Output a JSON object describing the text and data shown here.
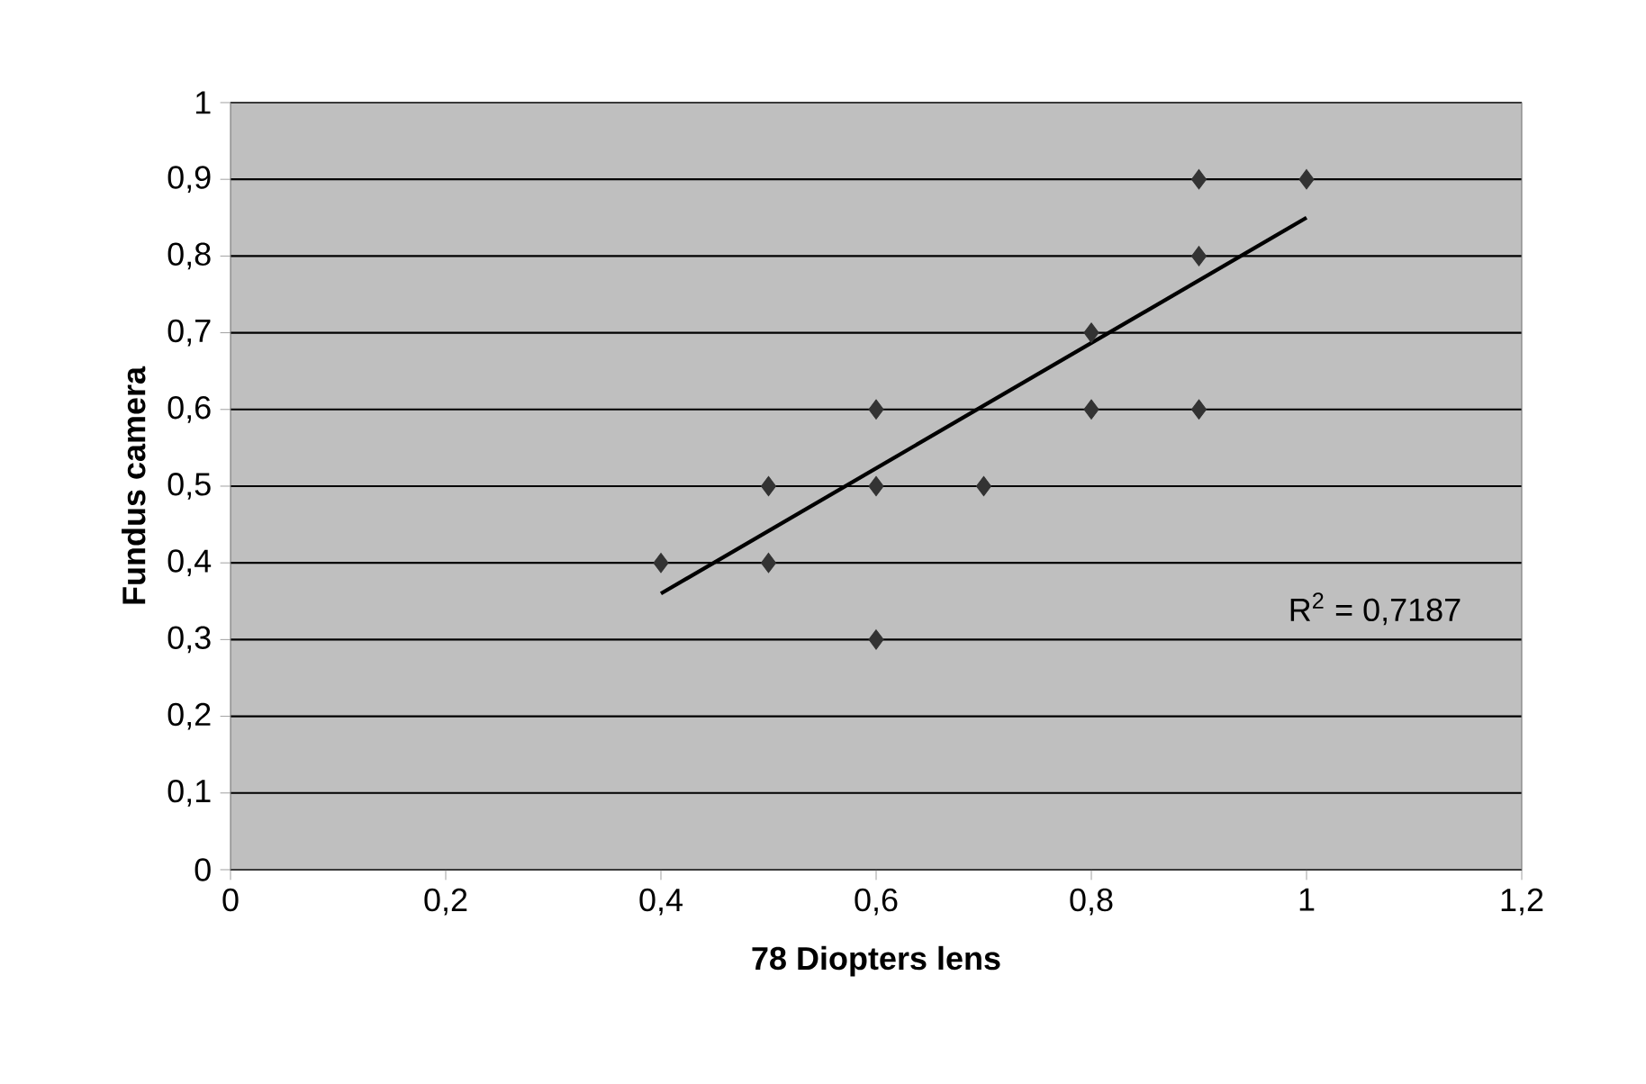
{
  "chart_data": {
    "type": "scatter",
    "xlabel": "78 Diopters lens",
    "ylabel": "Fundus camera",
    "grid": "y",
    "annotations": [
      "R$^{2}$ = 0,7187"
    ],
    "series": [
      {
        "marker": "diamond",
        "color": "#333333",
        "x": [
          0.4,
          0.5,
          0.5,
          0.6,
          0.6,
          0.6,
          0.7,
          0.8,
          0.8,
          0.9,
          0.9,
          0.9,
          1.0
        ],
        "values": [
          0.4,
          0.5,
          0.4,
          0.6,
          0.5,
          0.3,
          0.5,
          0.7,
          0.6,
          0.9,
          0.8,
          0.6,
          0.9
        ]
      },
      {
        "type": "line",
        "marker": "none",
        "color": "#000000",
        "x": [
          0.4,
          1.0
        ],
        "values": [
          0.36,
          0.85
        ]
      }
    ],
    "xlim": [
      0,
      1.2
    ],
    "ylim": [
      0,
      1
    ],
    "xticks": [
      {
        "value": 0,
        "label": "0"
      },
      {
        "value": 0.2,
        "label": "0,2"
      },
      {
        "value": 0.4,
        "label": "0,4"
      },
      {
        "value": 0.6,
        "label": "0,6"
      },
      {
        "value": 0.8,
        "label": "0,8"
      },
      {
        "value": 1,
        "label": "1"
      },
      {
        "value": 1.2,
        "label": "1,2"
      }
    ],
    "yticks": [
      {
        "value": 0,
        "label": "0"
      },
      {
        "value": 0.1,
        "label": "0,1"
      },
      {
        "value": 0.2,
        "label": "0,2"
      },
      {
        "value": 0.3,
        "label": "0,3"
      },
      {
        "value": 0.4,
        "label": "0,4"
      },
      {
        "value": 0.5,
        "label": "0,5"
      },
      {
        "value": 0.6,
        "label": "0,6"
      },
      {
        "value": 0.7,
        "label": "0,7"
      },
      {
        "value": 0.8,
        "label": "0,8"
      },
      {
        "value": 0.9,
        "label": "0,9"
      },
      {
        "value": 1,
        "label": "1"
      }
    ]
  }
}
